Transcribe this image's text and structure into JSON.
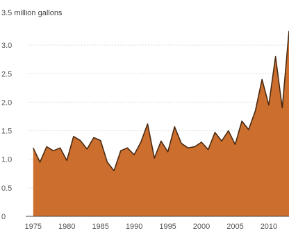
{
  "chart_data": {
    "type": "area",
    "title": "",
    "xlabel": "",
    "ylabel": "",
    "unit_label": "3.5 million gallons",
    "xlim": [
      1974.3,
      2013
    ],
    "ylim": [
      0,
      3.5
    ],
    "y_ticks": [
      0,
      0.5,
      1.0,
      1.5,
      2.0,
      2.5,
      3.0
    ],
    "y_tick_labels": [
      "0",
      "0.5",
      "1.0",
      "1.5",
      "2.0",
      "2.5",
      "3.0"
    ],
    "x_ticks": [
      1975,
      1980,
      1985,
      1990,
      1995,
      2000,
      2005,
      2010
    ],
    "x_tick_labels": [
      "1975",
      "1980",
      "1985",
      "1990",
      "1995",
      "2000",
      "2005",
      "2010"
    ],
    "grid": true,
    "colors": {
      "fill": "#cc6f2e",
      "line": "#4a2a12",
      "grid": "#dddddd"
    },
    "series": [
      {
        "x": [
          1975,
          1976,
          1977,
          1978,
          1979,
          1980,
          1981,
          1982,
          1983,
          1984,
          1985,
          1986,
          1987,
          1988,
          1989,
          1990,
          1991,
          1992,
          1993,
          1994,
          1995,
          1996,
          1997,
          1998,
          1999,
          2000,
          2001,
          2002,
          2003,
          2004,
          2005,
          2006,
          2007,
          2008,
          2009,
          2010,
          2011,
          2012,
          2013
        ],
        "values": [
          1.2,
          0.95,
          1.22,
          1.15,
          1.2,
          0.98,
          1.4,
          1.33,
          1.18,
          1.38,
          1.33,
          0.95,
          0.8,
          1.15,
          1.2,
          1.08,
          1.3,
          1.62,
          1.02,
          1.32,
          1.13,
          1.57,
          1.28,
          1.2,
          1.22,
          1.3,
          1.17,
          1.47,
          1.32,
          1.5,
          1.26,
          1.67,
          1.52,
          1.85,
          2.4,
          1.95,
          2.8,
          1.9,
          3.25
        ]
      }
    ]
  }
}
